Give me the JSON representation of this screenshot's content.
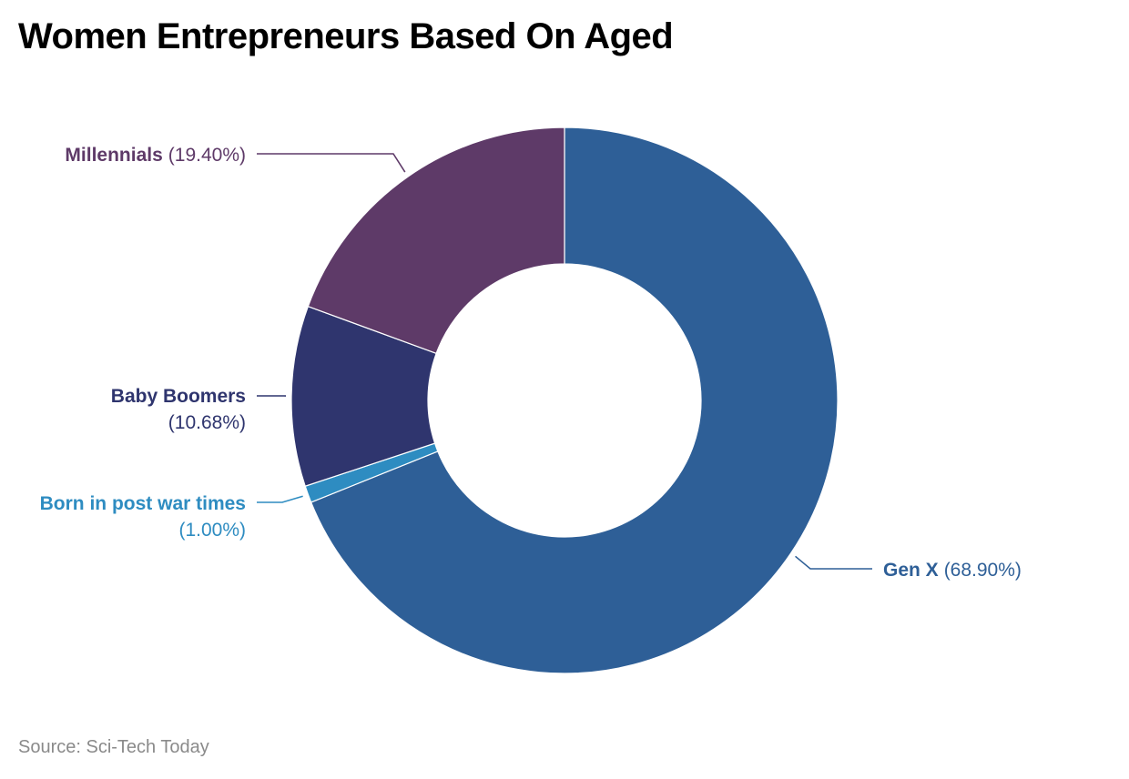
{
  "title": "Women Entrepreneurs Based On Aged",
  "source": "Source: Sci-Tech Today",
  "chart_data": {
    "type": "pie",
    "donut": true,
    "title": "Women Entrepreneurs Based On Aged",
    "slices": [
      {
        "name": "Gen X",
        "value": 68.9,
        "label_value": "(68.90%)",
        "color": "#2e5f97"
      },
      {
        "name": "Born in post war times",
        "value": 1.0,
        "label_value": "(1.00%)",
        "color": "#2e8cc1"
      },
      {
        "name": "Baby Boomers",
        "value": 10.68,
        "label_value": "(10.68%)",
        "color": "#2f356e"
      },
      {
        "name": "Millennials",
        "value": 19.4,
        "label_value": "(19.40%)",
        "color": "#5e3a68"
      }
    ],
    "start": "12 o'clock",
    "direction": "clockwise",
    "legend": "none",
    "data_labels": "outside with leader lines"
  }
}
